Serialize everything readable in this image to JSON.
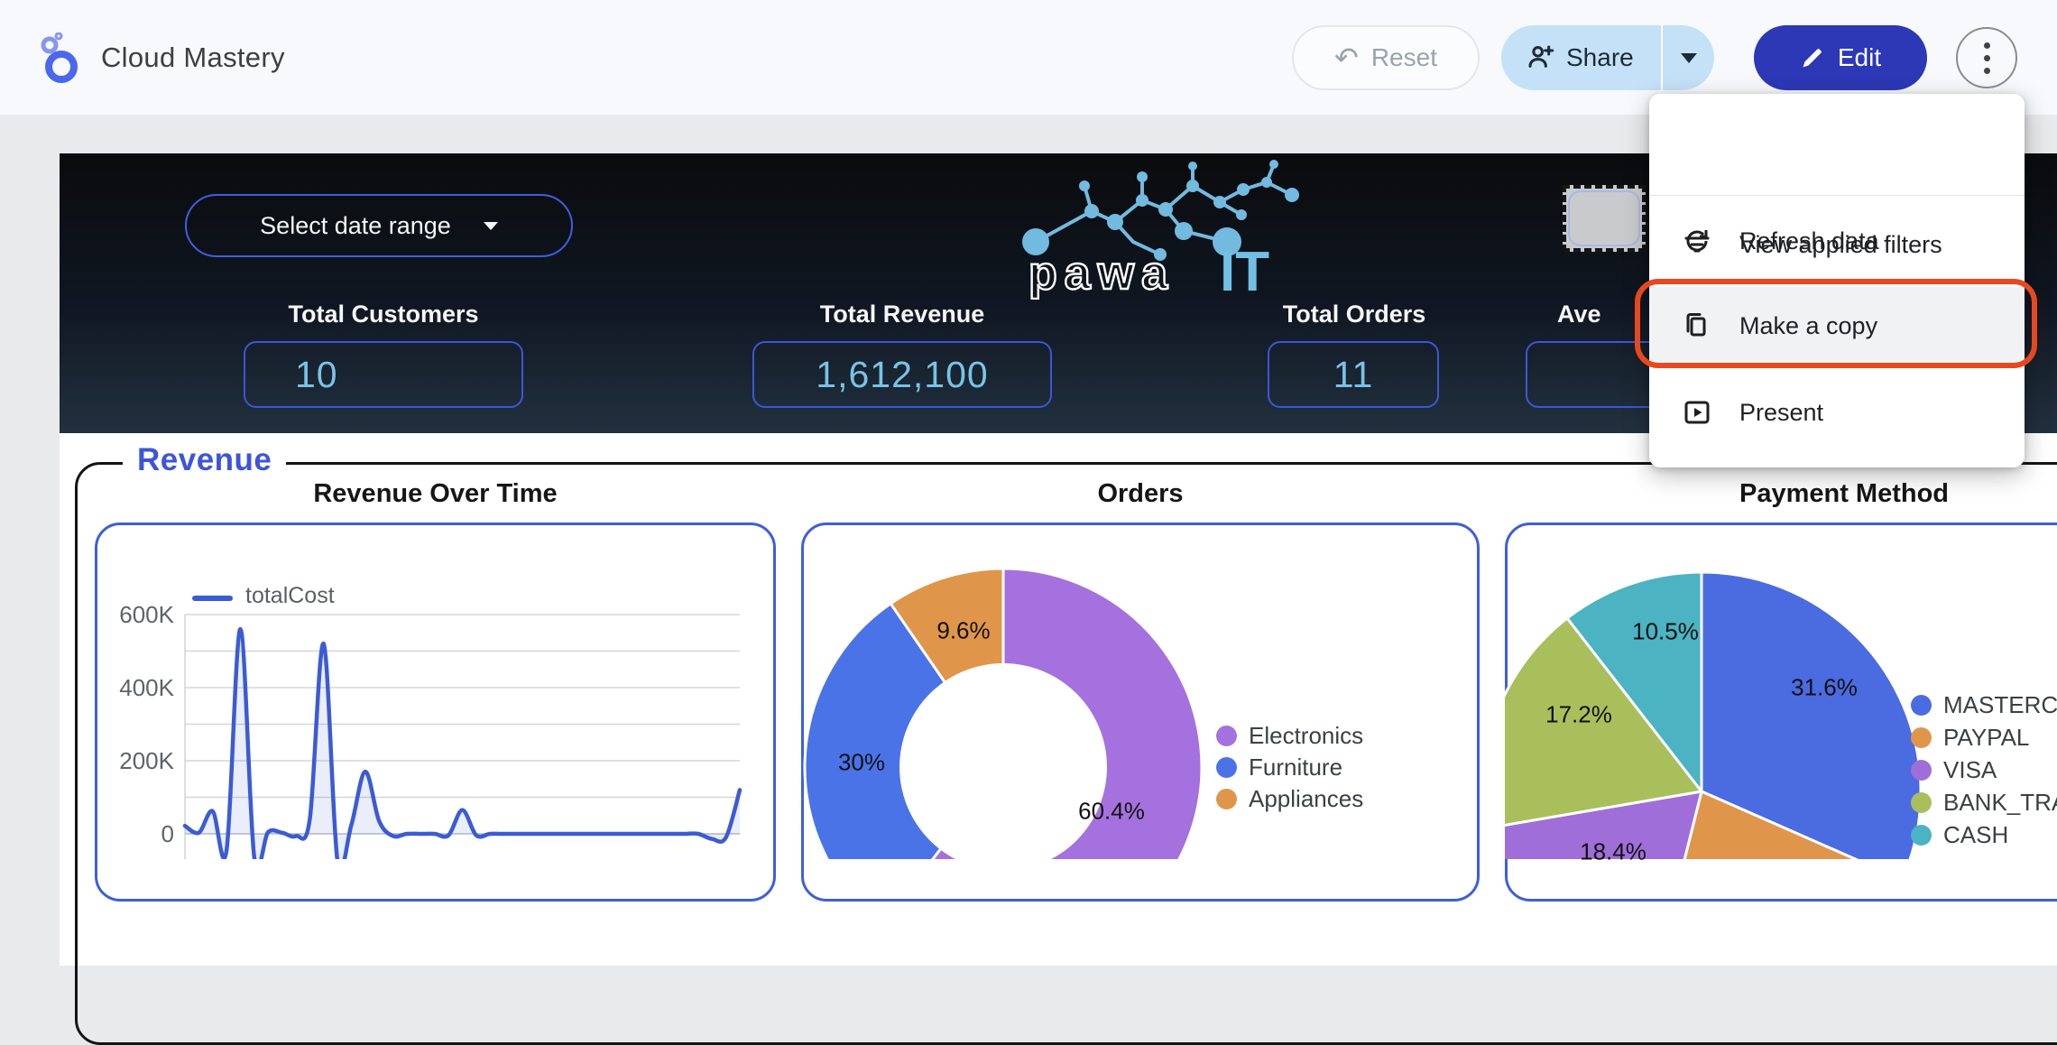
{
  "topbar": {
    "title": "Cloud Mastery",
    "reset_label": "Reset",
    "share_label": "Share",
    "edit_label": "Edit"
  },
  "menu": {
    "items": [
      {
        "icon": "filter-icon",
        "label": "View applied filters"
      },
      {
        "icon": "refresh-icon",
        "label": "Refresh data"
      },
      {
        "icon": "copy-icon",
        "label": "Make a copy",
        "highlighted": true
      },
      {
        "icon": "present-icon",
        "label": "Present"
      }
    ]
  },
  "header": {
    "date_range_label": "Select date range",
    "brand": {
      "word": "pawa",
      "suffix": "IT"
    },
    "kpis": [
      {
        "label": "Total Customers",
        "value": "10"
      },
      {
        "label": "Total Revenue",
        "value": "1,612,100"
      },
      {
        "label": "Total Orders",
        "value": "11"
      },
      {
        "label": "Ave",
        "value": ""
      }
    ]
  },
  "section_title": "Revenue",
  "colors": {
    "accent_blue": "#3d55d8",
    "card_border": "#3e5fd9",
    "kpi_value": "#7ac2e8",
    "edit_button": "#2c38b5",
    "share_button": "#c5e1f7",
    "annotation_red": "#e8481f",
    "line_series": "#3b5bd6"
  },
  "chart_data": [
    {
      "type": "line",
      "title": "Revenue Over Time",
      "series": [
        {
          "name": "totalCost",
          "values": [
            22000,
            3000,
            62000,
            -45000,
            560000,
            -65000,
            5000,
            3000,
            -6000,
            40000,
            520000,
            -75000,
            25000,
            170000,
            35000,
            -6000,
            0,
            0,
            0,
            -4000,
            65000,
            -4000,
            0,
            0,
            0,
            0,
            0,
            0,
            0,
            0,
            0,
            0,
            0,
            0,
            0,
            0,
            0,
            0,
            -14000,
            -10000,
            120000
          ]
        }
      ],
      "yticks": [
        "0",
        "200K",
        "400K",
        "600K"
      ],
      "ytick_values": [
        0,
        200000,
        400000,
        600000
      ],
      "ylim": [
        0,
        600000
      ],
      "grid": true,
      "legend_position": "top-left"
    },
    {
      "type": "pie",
      "subtype": "donut",
      "title": "Orders",
      "labels": [
        "Electronics",
        "Furniture",
        "Appliances"
      ],
      "values": [
        60.4,
        30,
        9.6
      ],
      "value_labels": [
        "60.4%",
        "30%",
        "9.6%"
      ],
      "colors": [
        "#a571de",
        "#4a73e8",
        "#e0964a"
      ],
      "legend_position": "right"
    },
    {
      "type": "pie",
      "title": "Payment Method",
      "labels": [
        "MASTERCARD",
        "PAYPAL",
        "VISA",
        "BANK_TRANSFER",
        "CASH"
      ],
      "values": [
        31.6,
        22.3,
        18.4,
        17.2,
        10.5
      ],
      "value_labels": [
        "31.6%",
        "",
        "18.4%",
        "17.2%",
        "10.5%"
      ],
      "colors": [
        "#4a6ce0",
        "#e0964a",
        "#a06ed8",
        "#a9bf5c",
        "#4bb3c1"
      ],
      "legend_position": "right"
    }
  ]
}
